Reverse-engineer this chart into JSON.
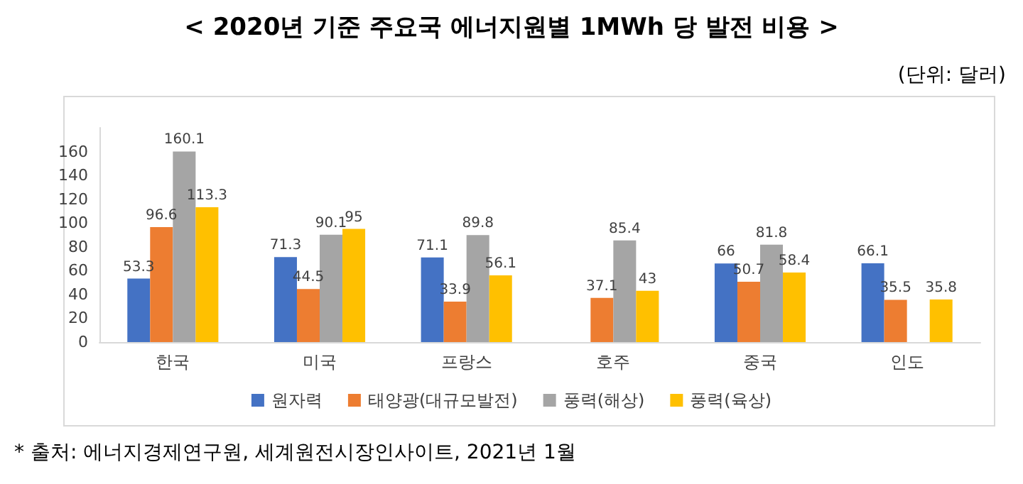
{
  "chart_data": {
    "type": "bar",
    "title": "< 2020년 기준 주요국 에너지원별 1MWh 당 발전 비용 >",
    "annotations": [
      "(단위: 달러)",
      "* 출처: 에너지경제연구원, 세계원전시장인사이트, 2021년 1월"
    ],
    "categories": [
      "한국",
      "미국",
      "프랑스",
      "호주",
      "중국",
      "인도"
    ],
    "series": [
      {
        "name": "원자력",
        "color": "#4472c4",
        "values": [
          53.3,
          71.3,
          71.1,
          null,
          66,
          66.1
        ]
      },
      {
        "name": "태양광(대규모발전)",
        "color": "#ed7d31",
        "values": [
          96.6,
          44.5,
          33.9,
          37.1,
          50.7,
          35.5
        ]
      },
      {
        "name": "풍력(해상)",
        "color": "#a5a5a5",
        "values": [
          160.1,
          90.1,
          89.8,
          85.4,
          81.8,
          null
        ]
      },
      {
        "name": "풍력(육상)",
        "color": "#ffc000",
        "values": [
          113.3,
          95,
          56.1,
          43,
          58.4,
          35.8
        ]
      }
    ],
    "ylim": [
      0,
      180
    ],
    "yticks": [
      0,
      20,
      40,
      60,
      80,
      100,
      120,
      140,
      160
    ],
    "data_labels": true,
    "grid": false,
    "legend": "bottom"
  }
}
